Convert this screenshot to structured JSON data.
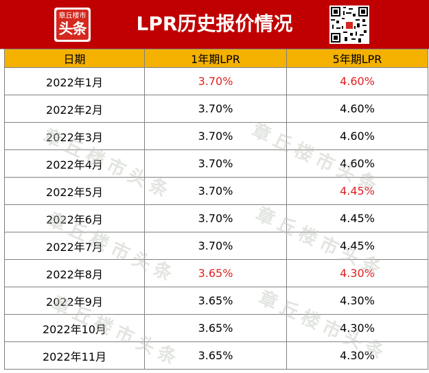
{
  "header": {
    "title": "LPR历史报价情况",
    "logo_small": "章丘楼市",
    "logo_big": "头条"
  },
  "table": {
    "columns": [
      "日期",
      "1年期LPR",
      "5年期LPR"
    ],
    "rows": [
      [
        "2022年1月",
        "3.70%",
        "4.60%"
      ],
      [
        "2022年2月",
        "3.70%",
        "4.60%"
      ],
      [
        "2022年3月",
        "3.70%",
        "4.60%"
      ],
      [
        "2022年4月",
        "3.70%",
        "4.60%"
      ],
      [
        "2022年5月",
        "3.70%",
        "4.45%"
      ],
      [
        "2022年6月",
        "3.70%",
        "4.45%"
      ],
      [
        "2022年7月",
        "3.70%",
        "4.45%"
      ],
      [
        "2022年8月",
        "3.65%",
        "4.30%"
      ],
      [
        "2022年9月",
        "3.65%",
        "4.30%"
      ],
      [
        "2022年10月",
        "3.65%",
        "4.30%"
      ],
      [
        "2022年11月",
        "3.65%",
        "4.30%"
      ]
    ],
    "highlighted_cells": [
      [
        0,
        1
      ],
      [
        0,
        2
      ],
      [
        4,
        2
      ],
      [
        7,
        1
      ],
      [
        7,
        2
      ]
    ]
  },
  "watermark": "章丘楼市头条",
  "colors": {
    "header_bg": "#c00000",
    "column_header_bg": "#f4b100",
    "highlight_text": "#e02020",
    "watermark": "#bfc7bb"
  }
}
